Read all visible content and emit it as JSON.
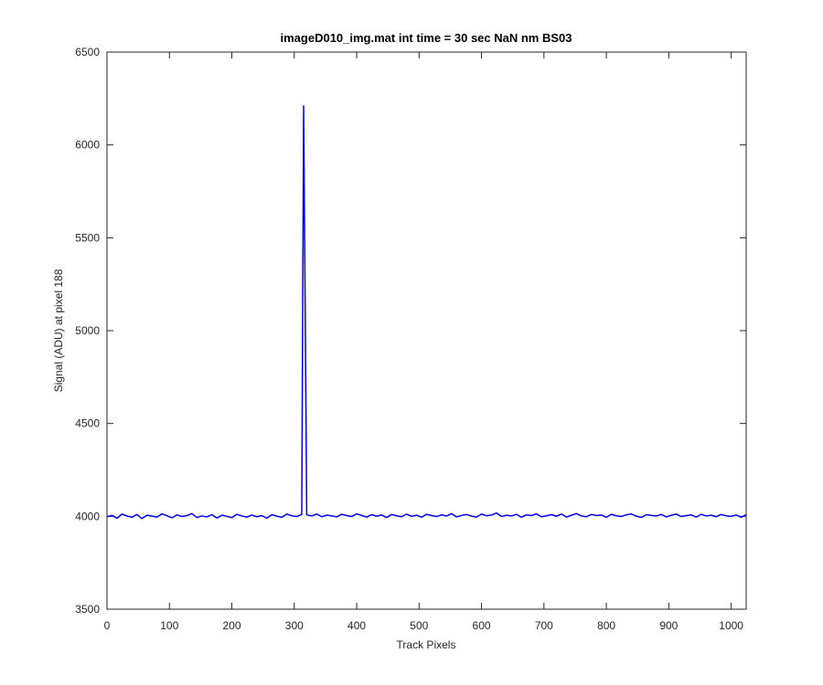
{
  "chart_data": {
    "type": "line",
    "title": "imageD010_img.mat int time = 30 sec  NaN nm BS03",
    "xlabel": "Track Pixels",
    "ylabel": "Signal (ADU) at pixel 188",
    "xlim": [
      0,
      1024
    ],
    "ylim": [
      3500,
      6500
    ],
    "xticks": [
      0,
      100,
      200,
      300,
      400,
      500,
      600,
      700,
      800,
      900,
      1000
    ],
    "yticks": [
      3500,
      4000,
      4500,
      5000,
      5500,
      6000,
      6500
    ],
    "grid": false,
    "series": [
      {
        "color": "#0000ff",
        "x": [
          0,
          8,
          16,
          24,
          32,
          40,
          48,
          56,
          64,
          72,
          80,
          88,
          96,
          104,
          112,
          120,
          128,
          136,
          144,
          152,
          160,
          168,
          176,
          184,
          192,
          200,
          208,
          216,
          224,
          232,
          240,
          248,
          256,
          264,
          272,
          280,
          288,
          296,
          304,
          312,
          315,
          320,
          328,
          336,
          344,
          352,
          360,
          368,
          376,
          384,
          392,
          400,
          408,
          416,
          424,
          432,
          440,
          448,
          456,
          464,
          472,
          480,
          488,
          496,
          504,
          512,
          520,
          528,
          536,
          544,
          552,
          560,
          568,
          576,
          584,
          592,
          600,
          608,
          616,
          624,
          632,
          640,
          648,
          656,
          664,
          672,
          680,
          688,
          696,
          704,
          712,
          720,
          728,
          736,
          744,
          752,
          760,
          768,
          776,
          784,
          792,
          800,
          808,
          816,
          824,
          832,
          840,
          848,
          856,
          864,
          872,
          880,
          888,
          896,
          904,
          912,
          920,
          928,
          936,
          944,
          952,
          960,
          968,
          976,
          984,
          992,
          1000,
          1008,
          1016,
          1024
        ],
        "values": [
          3998,
          4005,
          3990,
          4012,
          4002,
          3995,
          4010,
          3988,
          4006,
          4001,
          3996,
          4013,
          4003,
          3992,
          4008,
          3999,
          4004,
          4015,
          3994,
          4002,
          3997,
          4009,
          3991,
          4006,
          4000,
          3993,
          4011,
          4002,
          3996,
          4007,
          3998,
          4004,
          3990,
          4009,
          4001,
          3995,
          4012,
          4003,
          3999,
          4010,
          6210,
          4008,
          4002,
          4012,
          3998,
          4006,
          4003,
          3997,
          4011,
          4004,
          3999,
          4013,
          4005,
          3996,
          4009,
          4001,
          4007,
          3994,
          4010,
          4003,
          3998,
          4012,
          4000,
          4006,
          3995,
          4011,
          4004,
          3999,
          4008,
          4002,
          4014,
          3997,
          4005,
          4010,
          4001,
          3996,
          4012,
          4003,
          4007,
          4018,
          3999,
          4006,
          4002,
          4011,
          3995,
          4008,
          4004,
          4013,
          3998,
          4003,
          4009,
          4001,
          4012,
          3996,
          4006,
          4015,
          4002,
          3998,
          4010,
          4004,
          4007,
          3995,
          4011,
          4003,
          3999,
          4008,
          4013,
          4001,
          3994,
          4009,
          4005,
          4002,
          4010,
          3997,
          4006,
          4012,
          3999,
          4004,
          4008,
          3996,
          4011,
          4002,
          4006,
          3998,
          4010,
          4003,
          4000,
          4007,
          3995,
          4009
        ]
      }
    ]
  }
}
